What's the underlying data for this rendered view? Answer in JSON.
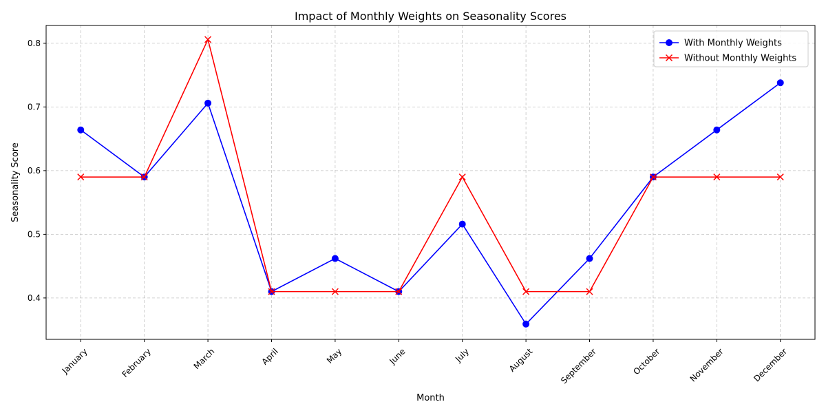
{
  "chart_data": {
    "type": "line",
    "title": "Impact of Monthly Weights on Seasonality Scores",
    "xlabel": "Month",
    "ylabel": "Seasonality Score",
    "categories": [
      "January",
      "February",
      "March",
      "April",
      "May",
      "June",
      "July",
      "August",
      "September",
      "October",
      "November",
      "December"
    ],
    "ylim": [
      0.335,
      0.828
    ],
    "yticks": [
      0.4,
      0.5,
      0.6,
      0.7,
      0.8
    ],
    "ytick_labels": [
      "0.4",
      "0.5",
      "0.6",
      "0.7",
      "0.8"
    ],
    "grid": true,
    "legend_position": "top-right",
    "series": [
      {
        "name": "With Monthly Weights",
        "color": "#0000ff",
        "marker": "circle",
        "values": [
          0.664,
          0.59,
          0.706,
          0.41,
          0.462,
          0.41,
          0.516,
          0.359,
          0.462,
          0.59,
          0.664,
          0.738
        ]
      },
      {
        "name": "Without Monthly Weights",
        "color": "#ff0000",
        "marker": "x",
        "values": [
          0.59,
          0.59,
          0.806,
          0.41,
          0.41,
          0.41,
          0.59,
          0.41,
          0.41,
          0.59,
          0.59,
          0.59
        ]
      }
    ]
  }
}
